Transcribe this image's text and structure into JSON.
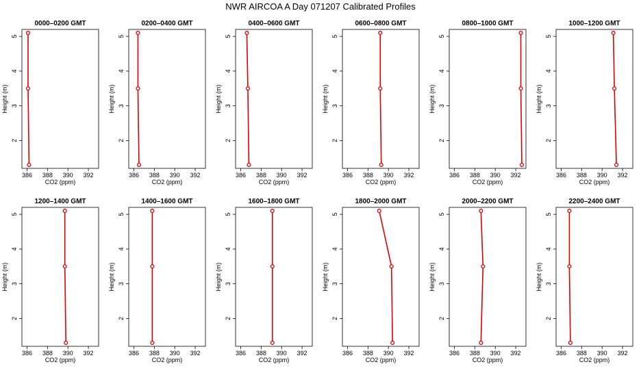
{
  "title": "NWR AIRCOA A  Day 071207  Calibrated Profiles",
  "colors": {
    "series": "#dd0000",
    "axis": "#000000",
    "background": "#ffffff"
  },
  "chart_data": {
    "type": "line",
    "layout": "2 rows x 6 panels",
    "xlabel": "CO2 (ppm)",
    "ylabel": "Height (m)",
    "xlim": [
      385.5,
      393
    ],
    "ylim": [
      1.2,
      5.2
    ],
    "xticks": [
      386,
      388,
      390,
      392
    ],
    "xtick_labels": [
      "386",
      "388",
      "390",
      "392"
    ],
    "yticks": [
      2,
      3,
      4,
      5
    ],
    "ytick_labels": [
      "2",
      "3",
      "4",
      "5"
    ],
    "heights": [
      1.3,
      3.5,
      5.1
    ],
    "grid": false,
    "legend": "none",
    "panels": [
      {
        "title": "0000–0200 GMT",
        "values": [
          386.2,
          386.1,
          386.1
        ]
      },
      {
        "title": "0200–0400 GMT",
        "values": [
          386.5,
          386.4,
          386.4
        ]
      },
      {
        "title": "0400–0600 GMT",
        "values": [
          386.8,
          386.7,
          386.6
        ]
      },
      {
        "title": "0600–0800 GMT",
        "values": [
          389.3,
          389.2,
          389.2
        ]
      },
      {
        "title": "0800–1000 GMT",
        "values": [
          392.6,
          392.5,
          392.5
        ]
      },
      {
        "title": "1000–1200 GMT",
        "values": [
          391.4,
          391.2,
          391.1
        ]
      },
      {
        "title": "1200–1400 GMT",
        "values": [
          389.8,
          389.7,
          389.7
        ]
      },
      {
        "title": "1400–1600 GMT",
        "values": [
          387.8,
          387.8,
          387.8
        ]
      },
      {
        "title": "1600–1800 GMT",
        "values": [
          389.1,
          389.1,
          389.1
        ]
      },
      {
        "title": "1800–2000 GMT",
        "values": [
          390.4,
          390.3,
          389.1
        ]
      },
      {
        "title": "2000–2200 GMT",
        "values": [
          388.6,
          388.8,
          388.6
        ]
      },
      {
        "title": "2200–2400 GMT",
        "values": [
          386.9,
          386.8,
          386.8
        ]
      }
    ]
  }
}
